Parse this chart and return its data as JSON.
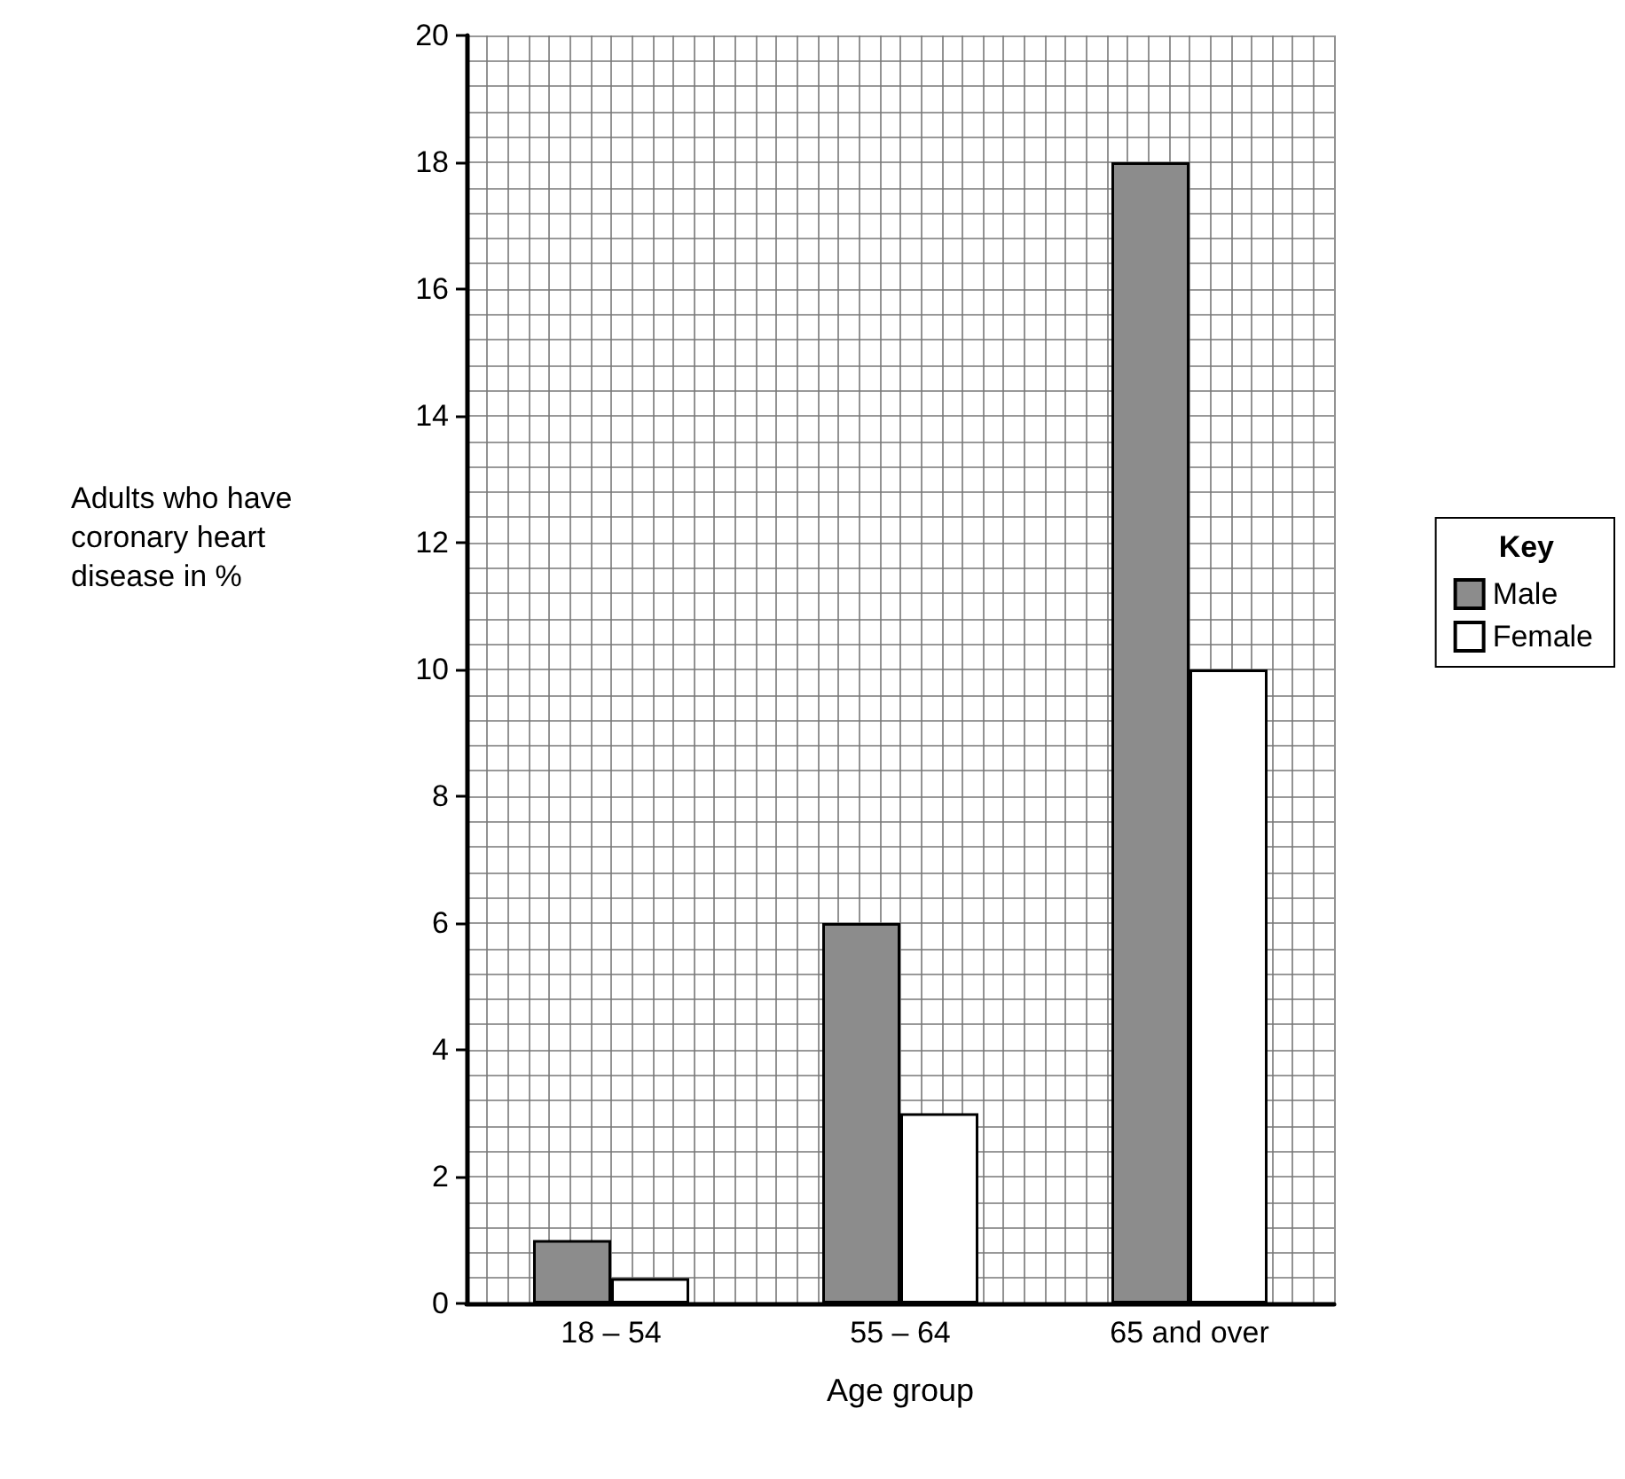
{
  "chart_data": {
    "type": "bar",
    "xlabel": "Age group",
    "ylabel": "Adults who have coronary heart disease in %",
    "legend_title": "Key",
    "categories": [
      "18 – 54",
      "55 – 64",
      "65 and over"
    ],
    "series": [
      {
        "name": "Male",
        "color": "#8c8c8c",
        "values": [
          1,
          6,
          18
        ]
      },
      {
        "name": "Female",
        "color": "#ffffff",
        "values": [
          0.4,
          3,
          10
        ]
      }
    ],
    "ylim": [
      0,
      20
    ],
    "yticks": [
      0,
      2,
      4,
      6,
      8,
      10,
      12,
      14,
      16,
      18,
      20
    ],
    "grid": true,
    "legend": "right"
  }
}
